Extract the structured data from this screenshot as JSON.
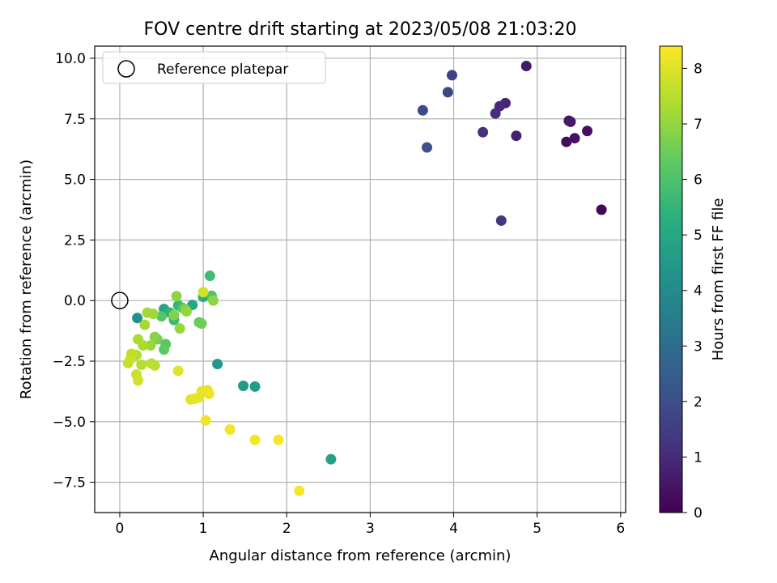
{
  "chart_data": {
    "type": "scatter",
    "title": "FOV centre drift starting at 2023/05/08 21:03:20",
    "xlabel": "Angular distance from reference (arcmin)",
    "ylabel": "Rotation from reference (arcmin)",
    "xlim": [
      -0.3,
      6.06
    ],
    "ylim": [
      -8.75,
      10.5
    ],
    "xticks": [
      0,
      1,
      2,
      3,
      4,
      5,
      6
    ],
    "yticks": [
      -7.5,
      -5.0,
      -2.5,
      0.0,
      2.5,
      5.0,
      7.5,
      10.0
    ],
    "xtick_labels": [
      "0",
      "1",
      "2",
      "3",
      "4",
      "5",
      "6"
    ],
    "ytick_labels": [
      "−7.5",
      "−5.0",
      "−2.5",
      "0.0",
      "2.5",
      "5.0",
      "7.5",
      "10.0"
    ],
    "grid": true,
    "legend": {
      "position": "top-left",
      "entries": [
        {
          "label": "Reference platepar",
          "marker": "open-circle"
        }
      ]
    },
    "reference_point": {
      "x": 0,
      "y": 0
    },
    "colorbar": {
      "label": "Hours from first FF file",
      "colormap": "viridis",
      "range": [
        0,
        8.4
      ],
      "ticks": [
        0,
        1,
        2,
        3,
        4,
        5,
        6,
        7,
        8
      ],
      "tick_labels": [
        "0",
        "1",
        "2",
        "3",
        "4",
        "5",
        "6",
        "7",
        "8"
      ]
    },
    "points": [
      {
        "x": 5.77,
        "y": 3.75,
        "h": 0.15
      },
      {
        "x": 5.35,
        "y": 6.55,
        "h": 0.25
      },
      {
        "x": 5.45,
        "y": 6.7,
        "h": 0.4
      },
      {
        "x": 5.6,
        "y": 7.0,
        "h": 0.3
      },
      {
        "x": 5.38,
        "y": 7.42,
        "h": 0.45
      },
      {
        "x": 5.4,
        "y": 7.38,
        "h": 0.55
      },
      {
        "x": 4.87,
        "y": 9.68,
        "h": 0.6
      },
      {
        "x": 4.75,
        "y": 6.8,
        "h": 0.75
      },
      {
        "x": 4.62,
        "y": 8.15,
        "h": 0.85
      },
      {
        "x": 4.55,
        "y": 8.02,
        "h": 0.95
      },
      {
        "x": 4.5,
        "y": 7.72,
        "h": 1.05
      },
      {
        "x": 4.35,
        "y": 6.95,
        "h": 1.15
      },
      {
        "x": 4.57,
        "y": 3.3,
        "h": 1.4
      },
      {
        "x": 3.98,
        "y": 9.3,
        "h": 1.6
      },
      {
        "x": 3.93,
        "y": 8.6,
        "h": 1.75
      },
      {
        "x": 3.63,
        "y": 7.85,
        "h": 1.9
      },
      {
        "x": 3.68,
        "y": 6.32,
        "h": 2.05
      },
      {
        "x": 0.21,
        "y": -0.72,
        "h": 4.2
      },
      {
        "x": 1.17,
        "y": -2.62,
        "h": 4.4
      },
      {
        "x": 1.48,
        "y": -3.52,
        "h": 4.5
      },
      {
        "x": 1.62,
        "y": -3.55,
        "h": 4.65
      },
      {
        "x": 2.53,
        "y": -6.55,
        "h": 4.8
      },
      {
        "x": 0.53,
        "y": -0.35,
        "h": 4.9
      },
      {
        "x": 0.87,
        "y": -0.18,
        "h": 5.0
      },
      {
        "x": 1.0,
        "y": 0.15,
        "h": 5.3
      },
      {
        "x": 0.6,
        "y": -0.5,
        "h": 5.4
      },
      {
        "x": 0.7,
        "y": -0.2,
        "h": 5.5
      },
      {
        "x": 0.65,
        "y": -0.8,
        "h": 5.6
      },
      {
        "x": 1.08,
        "y": 1.02,
        "h": 5.75
      },
      {
        "x": 0.75,
        "y": -0.3,
        "h": 5.9
      },
      {
        "x": 1.1,
        "y": 0.2,
        "h": 6.0
      },
      {
        "x": 0.5,
        "y": -0.65,
        "h": 6.1
      },
      {
        "x": 0.55,
        "y": -1.8,
        "h": 6.2
      },
      {
        "x": 0.53,
        "y": -2.02,
        "h": 6.3
      },
      {
        "x": 0.95,
        "y": -0.9,
        "h": 6.4
      },
      {
        "x": 0.98,
        "y": -0.95,
        "h": 6.5
      },
      {
        "x": 0.45,
        "y": -1.6,
        "h": 6.6
      },
      {
        "x": 0.78,
        "y": -0.35,
        "h": 6.7
      },
      {
        "x": 0.65,
        "y": -0.6,
        "h": 6.8
      },
      {
        "x": 0.42,
        "y": -1.5,
        "h": 6.85
      },
      {
        "x": 1.12,
        "y": 0.0,
        "h": 6.9
      },
      {
        "x": 0.68,
        "y": 0.18,
        "h": 6.95
      },
      {
        "x": 0.8,
        "y": -0.45,
        "h": 7.0
      },
      {
        "x": 0.72,
        "y": -1.15,
        "h": 7.05
      },
      {
        "x": 0.37,
        "y": -1.85,
        "h": 7.1
      },
      {
        "x": 0.4,
        "y": -0.55,
        "h": 7.15
      },
      {
        "x": 0.33,
        "y": -0.5,
        "h": 7.2
      },
      {
        "x": 0.3,
        "y": -1.0,
        "h": 7.25
      },
      {
        "x": 0.28,
        "y": -1.85,
        "h": 7.3
      },
      {
        "x": 0.22,
        "y": -1.6,
        "h": 7.35
      },
      {
        "x": 0.2,
        "y": -2.25,
        "h": 7.4
      },
      {
        "x": 0.26,
        "y": -2.65,
        "h": 7.45
      },
      {
        "x": 0.38,
        "y": -2.6,
        "h": 7.5
      },
      {
        "x": 0.42,
        "y": -2.68,
        "h": 7.55
      },
      {
        "x": 0.14,
        "y": -2.2,
        "h": 7.6
      },
      {
        "x": 0.1,
        "y": -2.58,
        "h": 7.65
      },
      {
        "x": 0.13,
        "y": -2.4,
        "h": 7.7
      },
      {
        "x": 0.2,
        "y": -3.05,
        "h": 7.75
      },
      {
        "x": 0.22,
        "y": -3.3,
        "h": 7.8
      },
      {
        "x": 1.0,
        "y": 0.35,
        "h": 7.85
      },
      {
        "x": 0.7,
        "y": -2.9,
        "h": 8.0
      },
      {
        "x": 0.85,
        "y": -4.08,
        "h": 8.05
      },
      {
        "x": 0.9,
        "y": -4.05,
        "h": 8.1
      },
      {
        "x": 0.95,
        "y": -4.0,
        "h": 8.1
      },
      {
        "x": 0.98,
        "y": -3.75,
        "h": 8.15
      },
      {
        "x": 1.05,
        "y": -3.7,
        "h": 8.15
      },
      {
        "x": 1.07,
        "y": -3.85,
        "h": 8.2
      },
      {
        "x": 1.03,
        "y": -4.95,
        "h": 8.2
      },
      {
        "x": 1.32,
        "y": -5.32,
        "h": 8.25
      },
      {
        "x": 1.62,
        "y": -5.75,
        "h": 8.3
      },
      {
        "x": 1.9,
        "y": -5.75,
        "h": 8.3
      },
      {
        "x": 2.15,
        "y": -7.85,
        "h": 8.35
      }
    ]
  }
}
